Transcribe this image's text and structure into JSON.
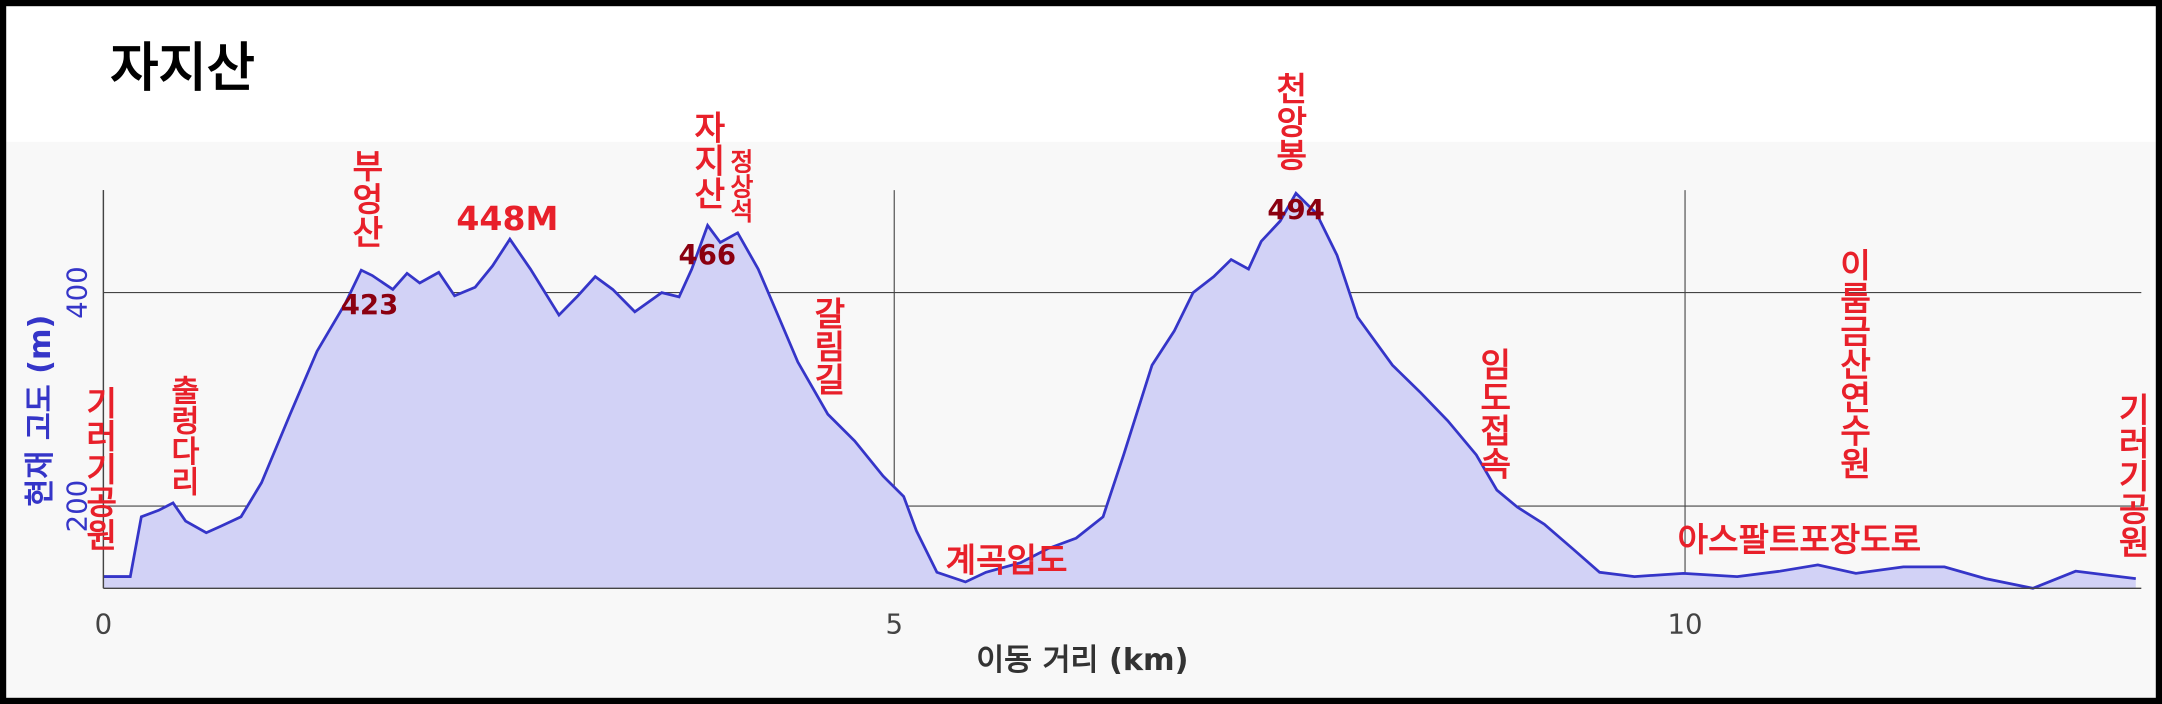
{
  "chart_data": {
    "type": "area",
    "title": "자지산",
    "x_label": "이동 거리 (km)",
    "y_label": "현재 고도 (m)",
    "xlim": [
      0,
      12.85
    ],
    "ylim": [
      123,
      496
    ],
    "xticks": [
      0,
      5,
      10
    ],
    "yticks": [
      200,
      400
    ],
    "grid": true,
    "x": [
      0,
      0.17,
      0.24,
      0.35,
      0.44,
      0.52,
      0.65,
      0.74,
      0.87,
      1.0,
      1.18,
      1.35,
      1.53,
      1.63,
      1.7,
      1.83,
      1.92,
      2.0,
      2.12,
      2.22,
      2.35,
      2.46,
      2.57,
      2.7,
      2.88,
      3.0,
      3.11,
      3.22,
      3.36,
      3.53,
      3.64,
      3.72,
      3.82,
      3.9,
      4.01,
      4.14,
      4.27,
      4.39,
      4.58,
      4.75,
      4.93,
      5.06,
      5.14,
      5.27,
      5.45,
      5.58,
      5.8,
      5.97,
      6.15,
      6.32,
      6.45,
      6.63,
      6.77,
      6.89,
      7.02,
      7.13,
      7.24,
      7.32,
      7.44,
      7.54,
      7.67,
      7.8,
      7.93,
      8.15,
      8.33,
      8.5,
      8.68,
      8.81,
      8.94,
      9.11,
      9.29,
      9.46,
      9.68,
      9.99,
      10.33,
      10.6,
      10.84,
      11.08,
      11.38,
      11.64,
      11.9,
      12.2,
      12.47,
      12.69,
      12.85
    ],
    "series": [
      {
        "name": "현재 고도",
        "color": "#3535c8",
        "fill": "#d2d2f6",
        "values": [
          134,
          134,
          190,
          196,
          203,
          186,
          175,
          181,
          190,
          222,
          286,
          345,
          390,
          421,
          416,
          403,
          418,
          409,
          419,
          397,
          405,
          425,
          450,
          422,
          379,
          397,
          415,
          403,
          382,
          400,
          396,
          422,
          463,
          447,
          456,
          422,
          377,
          335,
          286,
          261,
          228,
          209,
          177,
          138,
          129,
          138,
          147,
          160,
          170,
          190,
          248,
          332,
          364,
          400,
          415,
          431,
          422,
          448,
          467,
          493,
          474,
          435,
          377,
          332,
          306,
          280,
          248,
          215,
          199,
          183,
          160,
          138,
          134,
          137,
          134,
          139,
          145,
          137,
          143,
          143,
          132,
          123,
          139,
          135,
          132
        ]
      }
    ],
    "annotations": [
      "기러기공원",
      "출렁다리",
      "부엉산",
      "423",
      "448M",
      "자지산",
      "정상석",
      "466",
      "갈림길",
      "천앙봉",
      "494",
      "계곡입도",
      "임도접속",
      "이룸금산연수원",
      "아스팔트포장도로",
      "기러기공원"
    ]
  }
}
